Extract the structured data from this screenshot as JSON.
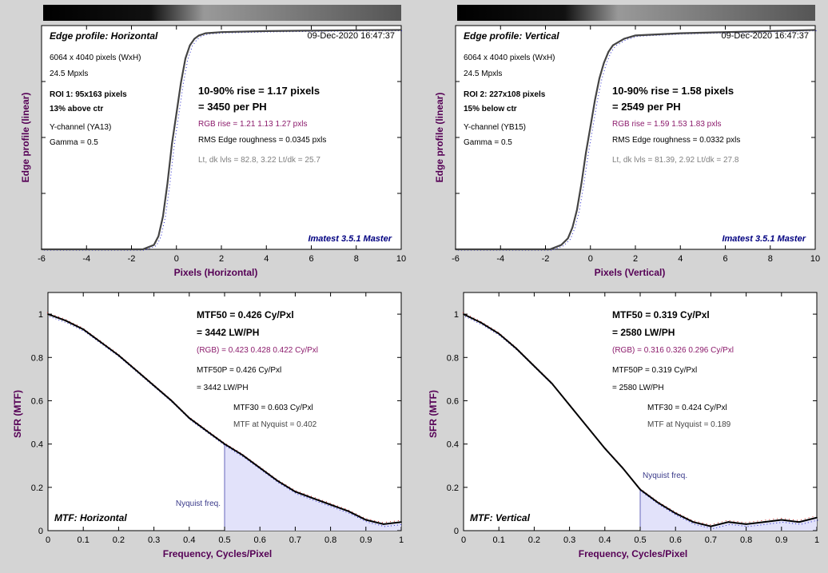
{
  "colors": {
    "background": "#d4d4d4",
    "plot_bg": "#ffffff",
    "axis_label": "#550055",
    "rgb_text": "#8b1a6b",
    "gray_text": "#808080",
    "master_text": "#000080",
    "nyq_text": "#3a3a8a",
    "fill": "#e2e2fa",
    "curve": "#444444",
    "mtf_curve": "#000000",
    "red": "#cc2222",
    "green": "#229922",
    "blue": "#2222cc"
  },
  "panels": [
    {
      "kind": "edge",
      "title": "Edge profile: Horizontal",
      "timestamp": "09-Dec-2020 16:47:37",
      "size": "6064 x 4040 pixels (WxH)",
      "mpx": "24.5 Mpxls",
      "roi": "ROI 1:  95x163 pixels",
      "loc": "13% above ctr",
      "channel": "Y-channel  (YA13)",
      "gamma": "Gamma = 0.5",
      "rise": "10-90% rise = 1.17 pixels",
      "per_ph": "= 3450 per PH",
      "rgb": "RGB rise = 1.21  1.13  1.27 pxls",
      "rms": "RMS Edge roughness = 0.0345 pxls",
      "levels": "Lt, dk lvls = 82.8, 3.22   Lt/dk = 25.7",
      "master": "Imatest 3.5.1 Master",
      "ylabel": "Edge profile (linear)",
      "xlabel": "Pixels (Horizontal)",
      "chart_data": {
        "type": "line",
        "title": "Edge profile: Horizontal",
        "xlabel": "Pixels (Horizontal)",
        "ylabel": "Edge profile (linear)",
        "xlim": [
          -6,
          10
        ],
        "ylim": [
          0,
          1.02
        ],
        "xticks": [
          "-6",
          "-4",
          "-2",
          "0",
          "2",
          "4",
          "6",
          "8",
          "10"
        ],
        "yticks": [],
        "grid": false,
        "series": [
          {
            "x": [
              -6,
              -3,
              -1.5,
              -1,
              -0.8,
              -0.6,
              -0.4,
              -0.2,
              0,
              0.2,
              0.4,
              0.6,
              0.8,
              1.0,
              1.3,
              2,
              4,
              6,
              8,
              10
            ],
            "values": [
              0,
              0,
              0,
              0.02,
              0.06,
              0.15,
              0.3,
              0.48,
              0.62,
              0.76,
              0.87,
              0.93,
              0.96,
              0.975,
              0.985,
              0.99,
              0.995,
              0.997,
              0.999,
              1.0
            ]
          }
        ]
      }
    },
    {
      "kind": "edge",
      "title": "Edge profile: Vertical",
      "timestamp": "09-Dec-2020 16:47:37",
      "size": "6064 x 4040 pixels (WxH)",
      "mpx": "24.5 Mpxls",
      "roi": "ROI 2:  227x108 pixels",
      "loc": "15% below ctr",
      "channel": "Y-channel  (YB15)",
      "gamma": "Gamma = 0.5",
      "rise": "10-90% rise = 1.58 pixels",
      "per_ph": "= 2549 per PH",
      "rgb": "RGB rise = 1.59  1.53  1.83 pxls",
      "rms": "RMS Edge roughness = 0.0332 pxls",
      "levels": "Lt, dk lvls = 81.39, 2.92   Lt/dk = 27.8",
      "master": "Imatest 3.5.1 Master",
      "ylabel": "Edge profile (linear)",
      "xlabel": "Pixels (Vertical)",
      "chart_data": {
        "type": "line",
        "title": "Edge profile: Vertical",
        "xlabel": "Pixels (Vertical)",
        "ylabel": "Edge profile (linear)",
        "xlim": [
          -6,
          10
        ],
        "ylim": [
          0,
          1.02
        ],
        "xticks": [
          "-6",
          "-4",
          "-2",
          "0",
          "2",
          "4",
          "6",
          "8",
          "10"
        ],
        "yticks": [],
        "grid": false,
        "series": [
          {
            "x": [
              -6,
              -3,
              -1.8,
              -1.3,
              -1,
              -0.8,
              -0.6,
              -0.4,
              -0.2,
              0,
              0.2,
              0.4,
              0.6,
              0.8,
              1.0,
              1.5,
              2,
              4,
              6,
              8,
              10
            ],
            "values": [
              0,
              0,
              0,
              0.02,
              0.05,
              0.1,
              0.18,
              0.3,
              0.44,
              0.56,
              0.68,
              0.78,
              0.85,
              0.9,
              0.93,
              0.96,
              0.975,
              0.985,
              0.99,
              0.995,
              1.0
            ]
          }
        ]
      }
    },
    {
      "kind": "mtf",
      "mtf50": "MTF50 = 0.426 Cy/Pxl",
      "lwph": "= 3442 LW/PH",
      "rgb": "(RGB) = 0.423  0.428  0.422 Cy/Pxl",
      "mtf50p": "MTF50P = 0.426 Cy/Pxl",
      "lwph2": "= 3442 LW/PH",
      "mtf30": "MTF30 = 0.603 Cy/Pxl",
      "nyq_val": "MTF at Nyquist = 0.402",
      "label": "MTF: Horizontal",
      "nyq": "Nyquist freq.",
      "ylabel": "SFR (MTF)",
      "xlabel": "Frequency, Cycles/Pixel",
      "chart_data": {
        "type": "line",
        "xlabel": "Frequency, Cycles/Pixel",
        "ylabel": "SFR (MTF)",
        "xlim": [
          0,
          1
        ],
        "ylim": [
          0,
          1.1
        ],
        "xticks": [
          "0",
          "0.1",
          "0.2",
          "0.3",
          "0.4",
          "0.5",
          "0.6",
          "0.7",
          "0.8",
          "0.9",
          "1"
        ],
        "yticks": [
          "0",
          "0.2",
          "0.4",
          "0.6",
          "0.8",
          "1"
        ],
        "nyquist": 0.5,
        "grid": false,
        "series": [
          {
            "x": [
              0,
              0.05,
              0.1,
              0.15,
              0.2,
              0.25,
              0.3,
              0.35,
              0.4,
              0.45,
              0.5,
              0.55,
              0.6,
              0.65,
              0.7,
              0.75,
              0.8,
              0.85,
              0.9,
              0.95,
              1.0
            ],
            "values": [
              1.0,
              0.97,
              0.93,
              0.87,
              0.81,
              0.74,
              0.67,
              0.6,
              0.52,
              0.46,
              0.4,
              0.35,
              0.29,
              0.23,
              0.18,
              0.15,
              0.12,
              0.09,
              0.05,
              0.03,
              0.04
            ]
          }
        ]
      }
    },
    {
      "kind": "mtf",
      "mtf50": "MTF50 = 0.319 Cy/Pxl",
      "lwph": "= 2580 LW/PH",
      "rgb": "(RGB) = 0.316  0.326  0.296 Cy/Pxl",
      "mtf50p": "MTF50P = 0.319 Cy/Pxl",
      "lwph2": "= 2580 LW/PH",
      "mtf30": "MTF30 = 0.424 Cy/Pxl",
      "nyq_val": "MTF at Nyquist = 0.189",
      "label": "MTF: Vertical",
      "nyq": "Nyquist freq.",
      "ylabel": "SFR (MTF)",
      "xlabel": "Frequency, Cycles/Pixel",
      "chart_data": {
        "type": "line",
        "xlabel": "Frequency, Cycles/Pixel",
        "ylabel": "SFR (MTF)",
        "xlim": [
          0,
          1
        ],
        "ylim": [
          0,
          1.1
        ],
        "xticks": [
          "0",
          "0.1",
          "0.2",
          "0.3",
          "0.4",
          "0.5",
          "0.6",
          "0.7",
          "0.8",
          "0.9",
          "1"
        ],
        "yticks": [
          "0",
          "0.2",
          "0.4",
          "0.6",
          "0.8",
          "1"
        ],
        "nyquist": 0.5,
        "grid": false,
        "series": [
          {
            "x": [
              0,
              0.05,
              0.1,
              0.15,
              0.2,
              0.25,
              0.3,
              0.35,
              0.4,
              0.45,
              0.5,
              0.55,
              0.6,
              0.65,
              0.7,
              0.75,
              0.8,
              0.85,
              0.9,
              0.95,
              1.0
            ],
            "values": [
              1.0,
              0.96,
              0.91,
              0.84,
              0.76,
              0.68,
              0.58,
              0.48,
              0.38,
              0.29,
              0.19,
              0.13,
              0.08,
              0.04,
              0.02,
              0.04,
              0.03,
              0.04,
              0.05,
              0.04,
              0.06
            ]
          }
        ]
      }
    }
  ]
}
